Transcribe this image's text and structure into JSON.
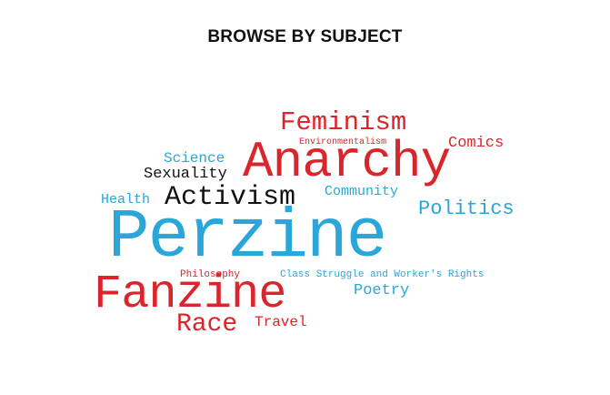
{
  "header": {
    "title": "BROWSE BY SUBJECT"
  },
  "colors": {
    "red": "#d9262c",
    "blue": "#2aa6d8",
    "black": "#111111"
  },
  "subjects": [
    {
      "label": "Feminism",
      "color": "red"
    },
    {
      "label": "Environmentalism",
      "color": "red"
    },
    {
      "label": "Comics",
      "color": "red"
    },
    {
      "label": "Science",
      "color": "blue"
    },
    {
      "label": "Anarchy",
      "color": "red"
    },
    {
      "label": "Sexuality",
      "color": "black"
    },
    {
      "label": "Community",
      "color": "blue"
    },
    {
      "label": "Health",
      "color": "blue"
    },
    {
      "label": "Activism",
      "color": "black"
    },
    {
      "label": "Politics",
      "color": "blue"
    },
    {
      "label": "Perzine",
      "color": "blue"
    },
    {
      "label": "Philosophy",
      "color": "red"
    },
    {
      "label": "Class Struggle and Worker's Rights",
      "color": "blue"
    },
    {
      "label": "Fanzine",
      "color": "red"
    },
    {
      "label": "Poetry",
      "color": "blue"
    },
    {
      "label": "Race",
      "color": "red"
    },
    {
      "label": "Travel",
      "color": "red"
    }
  ]
}
